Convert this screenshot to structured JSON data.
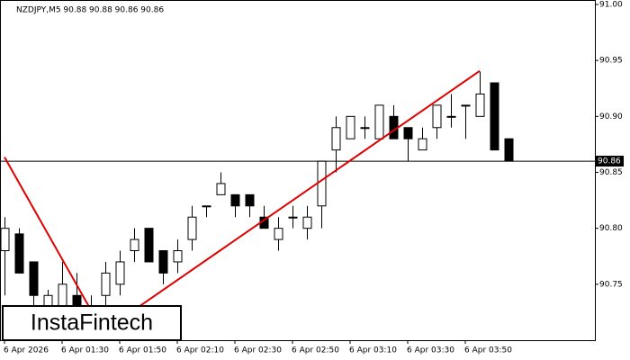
{
  "chart_data": {
    "type": "candlestick",
    "header": "NZDJPY,M5  90.88 90.88 90.86 90.86",
    "categories": [
      "6 Apr 2026",
      null,
      null,
      null,
      "6 Apr 01:30",
      null,
      null,
      null,
      "6 Apr 01:50",
      null,
      null,
      null,
      "6 Apr 02:10",
      null,
      null,
      null,
      "6 Apr 02:30",
      null,
      null,
      null,
      "6 Apr 02:50",
      null,
      null,
      null,
      "6 Apr 03:10",
      null,
      null,
      null,
      "6 Apr 03:30",
      null,
      null,
      null,
      "6 Apr 03:50",
      null,
      null,
      null
    ],
    "open": [
      90.78,
      90.795,
      90.77,
      90.73,
      90.73,
      90.74,
      90.725,
      90.74,
      90.75,
      90.78,
      90.8,
      90.78,
      90.77,
      90.79,
      90.82,
      90.83,
      90.83,
      90.83,
      90.81,
      90.79,
      90.81,
      90.8,
      90.82,
      90.87,
      90.88,
      90.89,
      90.88,
      90.9,
      90.89,
      90.87,
      90.89,
      90.9,
      90.91,
      90.9,
      90.93,
      90.88
    ],
    "high": [
      90.81,
      90.8,
      90.77,
      90.745,
      90.77,
      90.76,
      90.74,
      90.77,
      90.78,
      90.8,
      90.8,
      90.78,
      90.79,
      90.82,
      90.82,
      90.85,
      90.83,
      90.83,
      90.82,
      90.81,
      90.82,
      90.82,
      90.86,
      90.9,
      90.9,
      90.9,
      90.91,
      90.91,
      90.89,
      90.89,
      90.91,
      90.92,
      90.91,
      90.94,
      90.93,
      90.88
    ],
    "low": [
      90.74,
      90.76,
      90.72,
      90.71,
      90.72,
      90.72,
      90.71,
      90.73,
      90.74,
      90.77,
      90.77,
      90.75,
      90.76,
      90.78,
      90.81,
      90.83,
      90.81,
      90.81,
      90.8,
      90.78,
      90.8,
      90.79,
      90.8,
      90.85,
      90.88,
      90.88,
      90.88,
      90.88,
      90.86,
      90.87,
      90.88,
      90.89,
      90.88,
      90.9,
      90.87,
      90.86
    ],
    "close": [
      90.8,
      90.76,
      90.74,
      90.74,
      90.75,
      90.73,
      90.73,
      90.76,
      90.77,
      90.79,
      90.77,
      90.76,
      90.78,
      90.81,
      90.82,
      90.84,
      90.82,
      90.82,
      90.8,
      90.8,
      90.81,
      90.81,
      90.86,
      90.89,
      90.9,
      90.89,
      90.91,
      90.88,
      90.88,
      90.88,
      90.91,
      90.9,
      90.91,
      90.92,
      90.87,
      90.86
    ],
    "up_color": "#ffffff",
    "down_color": "#000000",
    "ylim": [
      90.7,
      91.0
    ],
    "yticks": [
      {
        "value": 91.0,
        "label": "91.00"
      },
      90.95,
      {
        "value": 90.9,
        "label": "90.90"
      },
      90.85,
      {
        "value": 90.8,
        "label": "90.80"
      },
      90.75
    ],
    "price_line": 90.86,
    "pattern_lines": [
      {
        "color": "#e00000",
        "x": [
          0,
          6
        ],
        "y": [
          90.8636,
          90.727
        ]
      },
      {
        "color": "#e00000",
        "x": [
          9,
          33
        ],
        "y": [
          90.727,
          90.9406
        ]
      }
    ],
    "logo": "InstaFintech"
  }
}
